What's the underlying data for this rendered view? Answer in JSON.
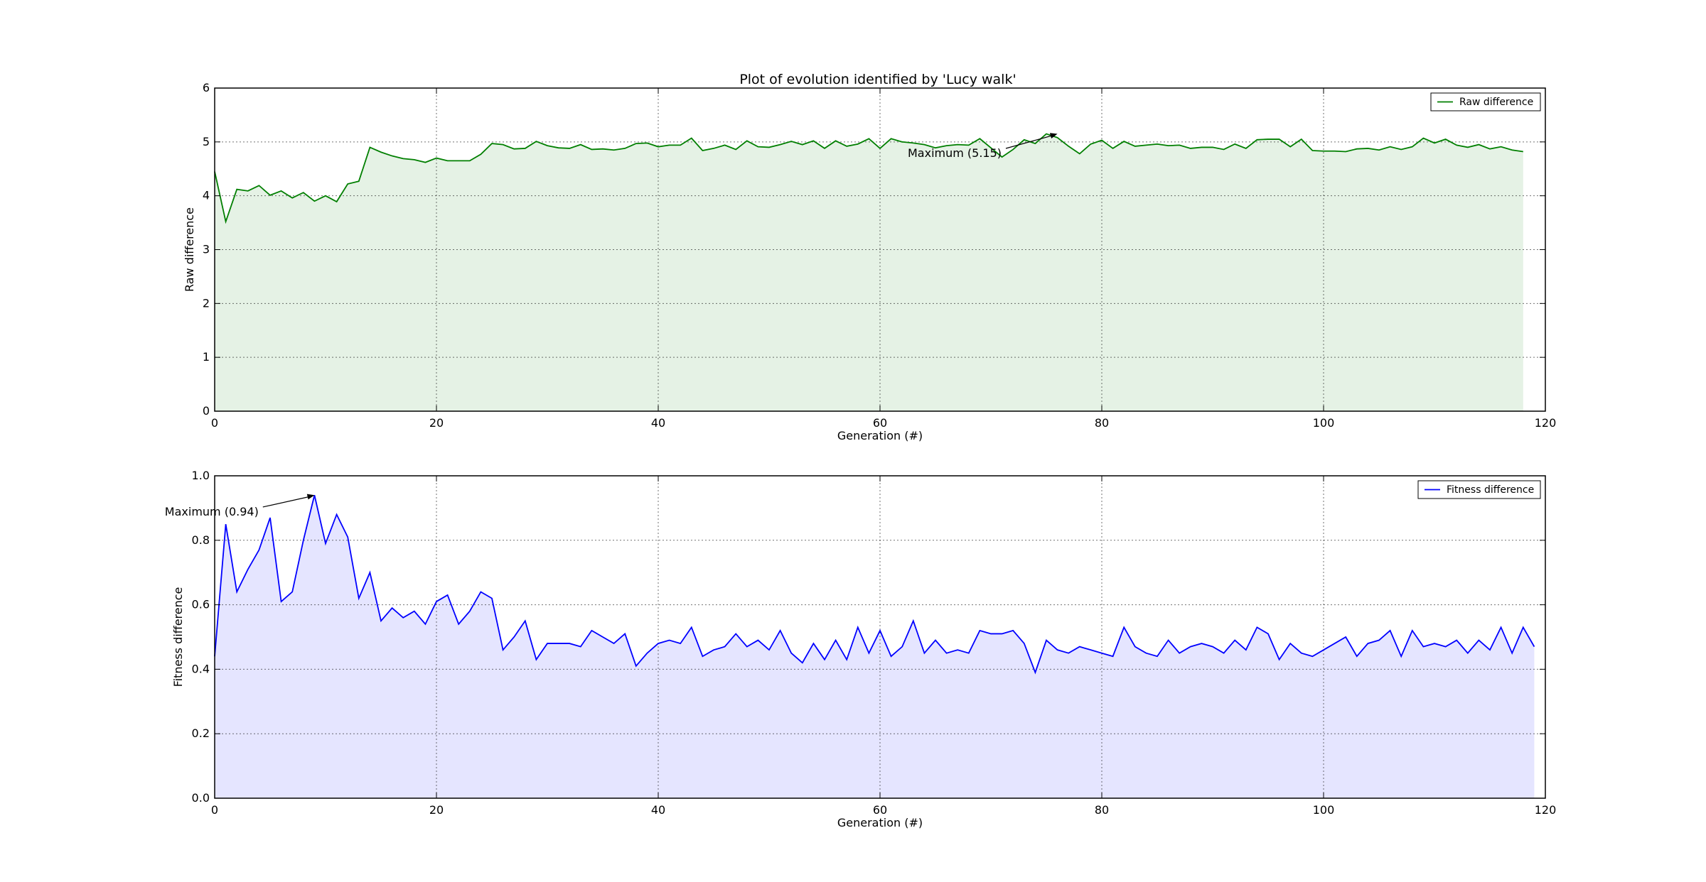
{
  "figure_title": "Plot of evolution identified by 'Lucy walk'",
  "chart_data": [
    {
      "type": "area",
      "id": "raw",
      "title": "Plot of evolution identified by 'Lucy walk'",
      "xlabel": "Generation (#)",
      "ylabel": "Raw difference",
      "xlim": [
        0,
        120
      ],
      "ylim": [
        0,
        6
      ],
      "xticks": [
        0,
        20,
        40,
        60,
        80,
        100,
        120
      ],
      "yticks": [
        0,
        1,
        2,
        3,
        4,
        5,
        6
      ],
      "ytick_labels": [
        "0",
        "1",
        "2",
        "3",
        "4",
        "5",
        "6"
      ],
      "grid": true,
      "legend_position": "top-right",
      "line_color": "#007f00",
      "fill_color": "#e5f2e5",
      "series": [
        {
          "name": "Raw difference",
          "values": [
            4.45,
            3.52,
            4.12,
            4.09,
            4.19,
            4.01,
            4.09,
            3.96,
            4.06,
            3.9,
            4.0,
            3.89,
            4.22,
            4.27,
            4.9,
            4.81,
            4.74,
            4.69,
            4.67,
            4.62,
            4.7,
            4.65,
            4.65,
            4.65,
            4.77,
            4.97,
            4.95,
            4.87,
            4.88,
            5.01,
            4.93,
            4.89,
            4.88,
            4.95,
            4.86,
            4.87,
            4.85,
            4.88,
            4.97,
            4.98,
            4.91,
            4.94,
            4.94,
            5.07,
            4.84,
            4.88,
            4.94,
            4.86,
            5.02,
            4.91,
            4.9,
            4.95,
            5.01,
            4.95,
            5.02,
            4.88,
            5.02,
            4.92,
            4.96,
            5.06,
            4.88,
            5.06,
            5.0,
            4.98,
            4.95,
            4.89,
            4.93,
            4.95,
            4.94,
            5.06,
            4.89,
            4.72,
            4.86,
            5.04,
            4.97,
            5.15,
            5.08,
            4.92,
            4.78,
            4.96,
            5.03,
            4.88,
            5.01,
            4.92,
            4.94,
            4.96,
            4.93,
            4.94,
            4.88,
            4.9,
            4.9,
            4.86,
            4.96,
            4.88,
            5.04,
            5.05,
            5.05,
            4.91,
            5.05,
            4.84,
            4.83,
            4.83,
            4.82,
            4.87,
            4.88,
            4.85,
            4.91,
            4.86,
            4.91,
            5.07,
            4.98,
            5.05,
            4.94,
            4.9,
            4.95,
            4.87,
            4.91,
            4.85,
            4.82
          ]
        }
      ],
      "annotation": {
        "text": "Maximum (5.15)",
        "point": [
          76,
          5.15
        ],
        "text_pos": [
          62.5,
          4.8
        ]
      }
    },
    {
      "type": "area",
      "id": "fit",
      "title": "",
      "xlabel": "Generation (#)",
      "ylabel": "Fitness difference",
      "xlim": [
        0,
        120
      ],
      "ylim": [
        0,
        1
      ],
      "xticks": [
        0,
        20,
        40,
        60,
        80,
        100,
        120
      ],
      "yticks": [
        0,
        0.2,
        0.4,
        0.6,
        0.8,
        1.0
      ],
      "ytick_labels": [
        "0.0",
        "0.2",
        "0.4",
        "0.6",
        "0.8",
        "1.0"
      ],
      "grid": true,
      "legend_position": "top-right",
      "line_color": "#0000ff",
      "fill_color": "#e5e5ff",
      "series": [
        {
          "name": "Fitness difference",
          "values": [
            0.44,
            0.85,
            0.64,
            0.71,
            0.77,
            0.87,
            0.61,
            0.64,
            0.8,
            0.94,
            0.79,
            0.88,
            0.81,
            0.62,
            0.7,
            0.55,
            0.59,
            0.56,
            0.58,
            0.54,
            0.61,
            0.63,
            0.54,
            0.58,
            0.64,
            0.62,
            0.46,
            0.5,
            0.55,
            0.43,
            0.48,
            0.48,
            0.48,
            0.47,
            0.52,
            0.5,
            0.48,
            0.51,
            0.41,
            0.45,
            0.48,
            0.49,
            0.48,
            0.53,
            0.44,
            0.46,
            0.47,
            0.51,
            0.47,
            0.49,
            0.46,
            0.52,
            0.45,
            0.42,
            0.48,
            0.43,
            0.49,
            0.43,
            0.53,
            0.45,
            0.52,
            0.44,
            0.47,
            0.55,
            0.45,
            0.49,
            0.45,
            0.46,
            0.45,
            0.52,
            0.51,
            0.51,
            0.52,
            0.48,
            0.39,
            0.49,
            0.46,
            0.45,
            0.47,
            0.46,
            0.45,
            0.44,
            0.53,
            0.47,
            0.45,
            0.44,
            0.49,
            0.45,
            0.47,
            0.48,
            0.47,
            0.45,
            0.49,
            0.46,
            0.53,
            0.51,
            0.43,
            0.48,
            0.45,
            0.44,
            0.46,
            0.48,
            0.5,
            0.44,
            0.48,
            0.49,
            0.52,
            0.44,
            0.52,
            0.47,
            0.48,
            0.47,
            0.49,
            0.45,
            0.49,
            0.46,
            0.53,
            0.45,
            0.53,
            0.47
          ]
        }
      ],
      "annotation": {
        "text": "Maximum (0.94)",
        "point": [
          9,
          0.94
        ],
        "text_pos": [
          -4.5,
          0.89
        ]
      }
    }
  ]
}
